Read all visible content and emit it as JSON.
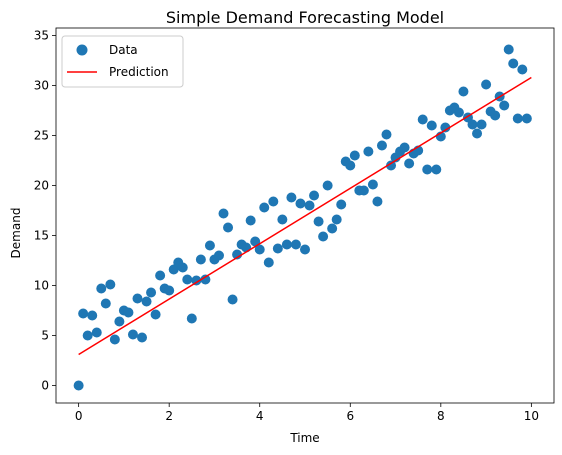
{
  "chart_data": {
    "type": "scatter",
    "title": "Simple Demand Forecasting Model",
    "xlabel": "Time",
    "ylabel": "Demand",
    "xlim": [
      -0.5,
      10.5
    ],
    "ylim": [
      -1.75,
      35.75
    ],
    "xticks": [
      0,
      2,
      4,
      6,
      8,
      10
    ],
    "yticks": [
      0,
      5,
      10,
      15,
      20,
      25,
      30,
      35
    ],
    "grid": false,
    "legend": "upper-left",
    "colors": {
      "data": "#1f77b4",
      "prediction": "#ff0000",
      "axes": "#000000"
    },
    "series": [
      {
        "name": "Data",
        "type": "scatter",
        "points": [
          [
            0,
            0
          ],
          [
            0.1,
            7.2
          ],
          [
            0.2,
            5.0
          ],
          [
            0.3,
            7.0
          ],
          [
            0.4,
            5.3
          ],
          [
            0.5,
            9.7
          ],
          [
            0.6,
            8.2
          ],
          [
            0.7,
            10.1
          ],
          [
            0.8,
            4.6
          ],
          [
            0.9,
            6.4
          ],
          [
            1.0,
            7.5
          ],
          [
            1.1,
            7.3
          ],
          [
            1.2,
            5.1
          ],
          [
            1.3,
            8.7
          ],
          [
            1.4,
            4.8
          ],
          [
            1.5,
            8.4
          ],
          [
            1.6,
            9.3
          ],
          [
            1.7,
            7.1
          ],
          [
            1.8,
            11.0
          ],
          [
            1.9,
            9.7
          ],
          [
            2.0,
            9.5
          ],
          [
            2.1,
            11.6
          ],
          [
            2.2,
            12.3
          ],
          [
            2.3,
            11.8
          ],
          [
            2.4,
            10.6
          ],
          [
            2.5,
            6.7
          ],
          [
            2.6,
            10.5
          ],
          [
            2.7,
            12.6
          ],
          [
            2.8,
            10.6
          ],
          [
            2.9,
            14.0
          ],
          [
            3.0,
            12.6
          ],
          [
            3.1,
            13.0
          ],
          [
            3.2,
            17.2
          ],
          [
            3.3,
            15.8
          ],
          [
            3.4,
            8.6
          ],
          [
            3.5,
            13.1
          ],
          [
            3.6,
            14.1
          ],
          [
            3.7,
            13.8
          ],
          [
            3.8,
            16.5
          ],
          [
            3.9,
            14.4
          ],
          [
            4.0,
            13.6
          ],
          [
            4.1,
            17.8
          ],
          [
            4.2,
            12.3
          ],
          [
            4.3,
            18.4
          ],
          [
            4.4,
            13.7
          ],
          [
            4.5,
            16.6
          ],
          [
            4.6,
            14.1
          ],
          [
            4.7,
            18.8
          ],
          [
            4.8,
            14.1
          ],
          [
            4.9,
            18.2
          ],
          [
            5.0,
            13.6
          ],
          [
            5.1,
            18.0
          ],
          [
            5.2,
            19.0
          ],
          [
            5.3,
            16.4
          ],
          [
            5.4,
            14.9
          ],
          [
            5.5,
            20.0
          ],
          [
            5.6,
            15.7
          ],
          [
            5.7,
            16.6
          ],
          [
            5.8,
            18.1
          ],
          [
            5.9,
            22.4
          ],
          [
            6.0,
            22.0
          ],
          [
            6.1,
            23.0
          ],
          [
            6.2,
            19.5
          ],
          [
            6.3,
            19.5
          ],
          [
            6.4,
            23.4
          ],
          [
            6.5,
            20.1
          ],
          [
            6.6,
            18.4
          ],
          [
            6.7,
            24.0
          ],
          [
            6.8,
            25.1
          ],
          [
            6.9,
            22.0
          ],
          [
            7.0,
            22.8
          ],
          [
            7.1,
            23.4
          ],
          [
            7.2,
            23.8
          ],
          [
            7.3,
            22.2
          ],
          [
            7.4,
            23.2
          ],
          [
            7.5,
            23.5
          ],
          [
            7.6,
            26.6
          ],
          [
            7.7,
            21.6
          ],
          [
            7.8,
            26.0
          ],
          [
            7.9,
            21.6
          ],
          [
            8.0,
            24.9
          ],
          [
            8.1,
            25.8
          ],
          [
            8.2,
            27.5
          ],
          [
            8.3,
            27.8
          ],
          [
            8.4,
            27.3
          ],
          [
            8.5,
            29.4
          ],
          [
            8.6,
            26.8
          ],
          [
            8.7,
            26.1
          ],
          [
            8.8,
            25.2
          ],
          [
            8.9,
            26.1
          ],
          [
            9.0,
            30.1
          ],
          [
            9.1,
            27.4
          ],
          [
            9.2,
            27.0
          ],
          [
            9.3,
            28.9
          ],
          [
            9.4,
            28.0
          ],
          [
            9.5,
            33.6
          ],
          [
            9.6,
            32.2
          ],
          [
            9.7,
            26.7
          ],
          [
            9.8,
            31.6
          ],
          [
            9.9,
            26.7
          ]
        ]
      },
      {
        "name": "Prediction",
        "type": "line",
        "points": [
          [
            0,
            3.1
          ],
          [
            10,
            30.8
          ]
        ]
      }
    ]
  }
}
